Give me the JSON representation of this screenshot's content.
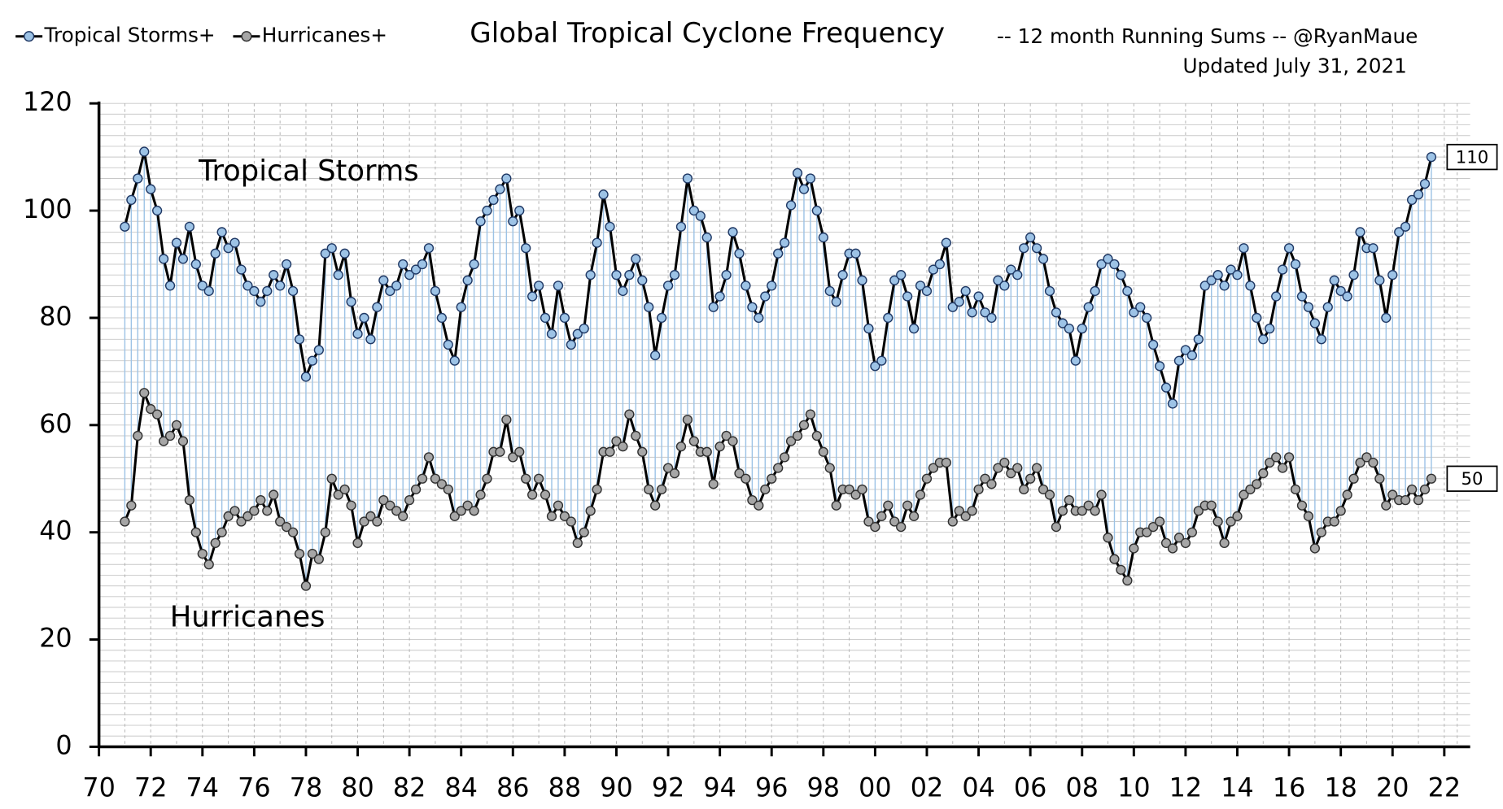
{
  "chart_data": {
    "type": "line",
    "title": "Global Tropical Cyclone Frequency",
    "subtitle": "-- 12 month Running Sums -- @RyanMaue",
    "updated": "Updated July 31, 2021",
    "annotations": [
      "Tropical Storms",
      "Hurricanes"
    ],
    "xlim": [
      1970,
      2023
    ],
    "xticks": [
      {
        "value": 1970,
        "label": "70"
      },
      {
        "value": 1972,
        "label": "72"
      },
      {
        "value": 1974,
        "label": "74"
      },
      {
        "value": 1976,
        "label": "76"
      },
      {
        "value": 1978,
        "label": "78"
      },
      {
        "value": 1980,
        "label": "80"
      },
      {
        "value": 1982,
        "label": "82"
      },
      {
        "value": 1984,
        "label": "84"
      },
      {
        "value": 1986,
        "label": "86"
      },
      {
        "value": 1988,
        "label": "88"
      },
      {
        "value": 1990,
        "label": "90"
      },
      {
        "value": 1992,
        "label": "92"
      },
      {
        "value": 1994,
        "label": "94"
      },
      {
        "value": 1996,
        "label": "96"
      },
      {
        "value": 1998,
        "label": "98"
      },
      {
        "value": 2000,
        "label": "00"
      },
      {
        "value": 2002,
        "label": "02"
      },
      {
        "value": 2004,
        "label": "04"
      },
      {
        "value": 2006,
        "label": "06"
      },
      {
        "value": 2008,
        "label": "08"
      },
      {
        "value": 2010,
        "label": "10"
      },
      {
        "value": 2012,
        "label": "12"
      },
      {
        "value": 2014,
        "label": "14"
      },
      {
        "value": 2016,
        "label": "16"
      },
      {
        "value": 2018,
        "label": "18"
      },
      {
        "value": 2020,
        "label": "20"
      },
      {
        "value": 2022,
        "label": "22"
      }
    ],
    "ylim": [
      0,
      120
    ],
    "yticks": [
      0,
      20,
      40,
      60,
      80,
      100,
      120
    ],
    "grid": true,
    "legend": "top-left",
    "x": [
      1971,
      1971.25,
      1971.5,
      1971.75,
      1972,
      1972.25,
      1972.5,
      1972.75,
      1973,
      1973.25,
      1973.5,
      1973.75,
      1974,
      1974.25,
      1974.5,
      1974.75,
      1975,
      1975.25,
      1975.5,
      1975.75,
      1976,
      1976.25,
      1976.5,
      1976.75,
      1977,
      1977.25,
      1977.5,
      1977.75,
      1978,
      1978.25,
      1978.5,
      1978.75,
      1979,
      1979.25,
      1979.5,
      1979.75,
      1980,
      1980.25,
      1980.5,
      1980.75,
      1981,
      1981.25,
      1981.5,
      1981.75,
      1982,
      1982.25,
      1982.5,
      1982.75,
      1983,
      1983.25,
      1983.5,
      1983.75,
      1984,
      1984.25,
      1984.5,
      1984.75,
      1985,
      1985.25,
      1985.5,
      1985.75,
      1986,
      1986.25,
      1986.5,
      1986.75,
      1987,
      1987.25,
      1987.5,
      1987.75,
      1988,
      1988.25,
      1988.5,
      1988.75,
      1989,
      1989.25,
      1989.5,
      1989.75,
      1990,
      1990.25,
      1990.5,
      1990.75,
      1991,
      1991.25,
      1991.5,
      1991.75,
      1992,
      1992.25,
      1992.5,
      1992.75,
      1993,
      1993.25,
      1993.5,
      1993.75,
      1994,
      1994.25,
      1994.5,
      1994.75,
      1995,
      1995.25,
      1995.5,
      1995.75,
      1996,
      1996.25,
      1996.5,
      1996.75,
      1997,
      1997.25,
      1997.5,
      1997.75,
      1998,
      1998.25,
      1998.5,
      1998.75,
      1999,
      1999.25,
      1999.5,
      1999.75,
      2000,
      2000.25,
      2000.5,
      2000.75,
      2001,
      2001.25,
      2001.5,
      2001.75,
      2002,
      2002.25,
      2002.5,
      2002.75,
      2003,
      2003.25,
      2003.5,
      2003.75,
      2004,
      2004.25,
      2004.5,
      2004.75,
      2005,
      2005.25,
      2005.5,
      2005.75,
      2006,
      2006.25,
      2006.5,
      2006.75,
      2007,
      2007.25,
      2007.5,
      2007.75,
      2008,
      2008.25,
      2008.5,
      2008.75,
      2009,
      2009.25,
      2009.5,
      2009.75,
      2010,
      2010.25,
      2010.5,
      2010.75,
      2011,
      2011.25,
      2011.5,
      2011.75,
      2012,
      2012.25,
      2012.5,
      2012.75,
      2013,
      2013.25,
      2013.5,
      2013.75,
      2014,
      2014.25,
      2014.5,
      2014.75,
      2015,
      2015.25,
      2015.5,
      2015.75,
      2016,
      2016.25,
      2016.5,
      2016.75,
      2017,
      2017.25,
      2017.5,
      2017.75,
      2018,
      2018.25,
      2018.5,
      2018.75,
      2019,
      2019.25,
      2019.5,
      2019.75,
      2020,
      2020.25,
      2020.5,
      2020.75,
      2021,
      2021.25,
      2021.5
    ],
    "series": [
      {
        "name": "Tropical Storms+",
        "color": "#9dc3e6",
        "values": [
          97,
          102,
          106,
          111,
          104,
          100,
          91,
          86,
          94,
          91,
          97,
          90,
          86,
          85,
          92,
          96,
          93,
          94,
          89,
          86,
          85,
          83,
          85,
          88,
          86,
          90,
          85,
          76,
          69,
          72,
          74,
          92,
          93,
          88,
          92,
          83,
          77,
          80,
          76,
          82,
          87,
          85,
          86,
          90,
          88,
          89,
          90,
          93,
          85,
          80,
          75,
          72,
          82,
          87,
          90,
          98,
          100,
          102,
          104,
          106,
          98,
          100,
          93,
          84,
          86,
          80,
          77,
          86,
          80,
          75,
          77,
          78,
          88,
          94,
          103,
          97,
          88,
          85,
          88,
          91,
          87,
          82,
          73,
          80,
          86,
          88,
          97,
          106,
          100,
          99,
          95,
          82,
          84,
          88,
          96,
          92,
          86,
          82,
          80,
          84,
          86,
          92,
          94,
          101,
          107,
          104,
          106,
          100,
          95,
          85,
          83,
          88,
          92,
          92,
          87,
          78,
          71,
          72,
          80,
          87,
          88,
          84,
          78,
          86,
          85,
          89,
          90,
          94,
          82,
          83,
          85,
          81,
          84,
          81,
          80,
          87,
          86,
          89,
          88,
          93,
          95,
          93,
          91,
          85,
          81,
          79,
          78,
          72,
          78,
          82,
          85,
          90,
          91,
          90,
          88,
          85,
          81,
          82,
          80,
          75,
          71,
          67,
          64,
          72,
          74,
          73,
          76,
          86,
          87,
          88,
          86,
          89,
          88,
          93,
          86,
          80,
          76,
          78,
          84,
          89,
          93,
          90,
          84,
          82,
          79,
          76,
          82,
          87,
          85,
          84,
          88,
          96,
          93,
          93,
          87,
          80,
          88,
          96,
          97,
          102,
          103,
          105,
          110
        ]
      },
      {
        "name": "Hurricanes+",
        "color": "#a6a6a6",
        "values": [
          42,
          45,
          58,
          66,
          63,
          62,
          57,
          58,
          60,
          57,
          46,
          40,
          36,
          34,
          38,
          40,
          43,
          44,
          42,
          43,
          44,
          46,
          44,
          47,
          42,
          41,
          40,
          36,
          30,
          36,
          35,
          40,
          50,
          47,
          48,
          45,
          38,
          42,
          43,
          42,
          46,
          45,
          44,
          43,
          46,
          48,
          50,
          54,
          50,
          49,
          48,
          43,
          44,
          45,
          44,
          47,
          50,
          55,
          55,
          61,
          54,
          55,
          50,
          47,
          50,
          47,
          43,
          45,
          43,
          42,
          38,
          40,
          44,
          48,
          55,
          55,
          57,
          56,
          62,
          58,
          55,
          48,
          45,
          48,
          52,
          51,
          56,
          61,
          57,
          55,
          55,
          49,
          56,
          58,
          57,
          51,
          50,
          46,
          45,
          48,
          50,
          52,
          54,
          57,
          58,
          60,
          62,
          58,
          55,
          52,
          45,
          48,
          48,
          47,
          48,
          42,
          41,
          43,
          45,
          42,
          41,
          45,
          43,
          47,
          50,
          52,
          53,
          53,
          42,
          44,
          43,
          44,
          48,
          50,
          49,
          52,
          53,
          51,
          52,
          48,
          50,
          52,
          48,
          47,
          41,
          44,
          46,
          44,
          44,
          45,
          44,
          47,
          39,
          35,
          33,
          31,
          37,
          40,
          40,
          41,
          42,
          38,
          37,
          39,
          38,
          40,
          44,
          45,
          45,
          42,
          38,
          42,
          43,
          47,
          48,
          49,
          51,
          53,
          54,
          52,
          54,
          48,
          45,
          43,
          37,
          40,
          42,
          42,
          44,
          47,
          50,
          53,
          54,
          53,
          50,
          45,
          47,
          46,
          46,
          48,
          46,
          48,
          50
        ]
      }
    ]
  }
}
